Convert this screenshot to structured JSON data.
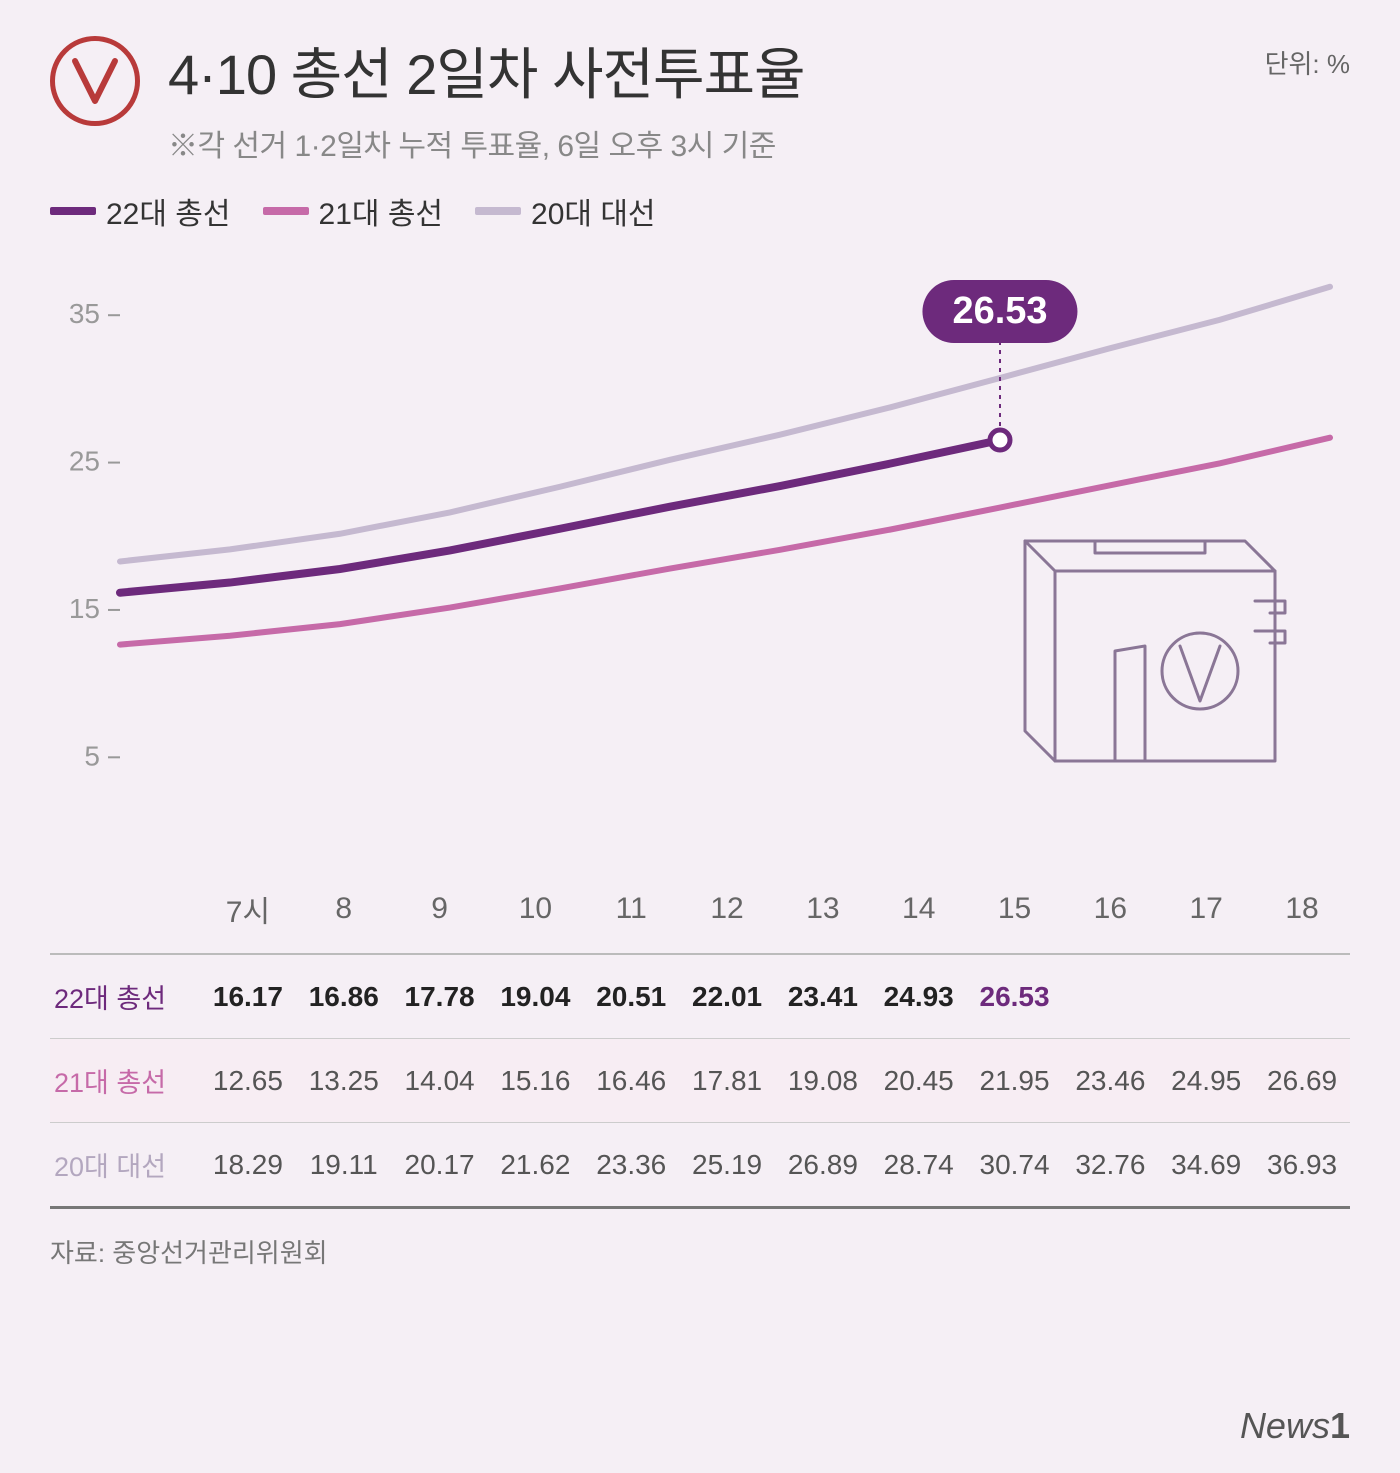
{
  "header": {
    "title": "4·10 총선 2일차 사전투표율",
    "subtitle": "※각 선거 1·2일차 누적 투표율, 6일 오후 3시 기준",
    "unit": "단위: %"
  },
  "legend": [
    {
      "label": "22대 총선",
      "color": "#6d2a7c"
    },
    {
      "label": "21대 총선",
      "color": "#c66aa8"
    },
    {
      "label": "20대 대선",
      "color": "#c5b9d0"
    }
  ],
  "chart": {
    "type": "line",
    "background_color": "#f5eff5",
    "x_labels": [
      "7시",
      "8",
      "9",
      "10",
      "11",
      "12",
      "13",
      "14",
      "15",
      "16",
      "17",
      "18"
    ],
    "y_ticks": [
      5,
      15,
      25,
      35
    ],
    "y_min": 0,
    "y_max": 38,
    "y_label_color": "#999",
    "y_label_fontsize": 28,
    "line_width_main": 8,
    "line_width_other": 6,
    "series": [
      {
        "name": "22대 총선",
        "color": "#6d2a7c",
        "width": 8,
        "values": [
          16.17,
          16.86,
          17.78,
          19.04,
          20.51,
          22.01,
          23.41,
          24.93,
          26.53
        ],
        "end_marker": true
      },
      {
        "name": "21대 총선",
        "color": "#c66aa8",
        "width": 6,
        "values": [
          12.65,
          13.25,
          14.04,
          15.16,
          16.46,
          17.81,
          19.08,
          20.45,
          21.95,
          23.46,
          24.95,
          26.69
        ]
      },
      {
        "name": "20대 대선",
        "color": "#c5b9d0",
        "width": 6,
        "values": [
          18.29,
          19.11,
          20.17,
          21.62,
          23.36,
          25.19,
          26.89,
          28.74,
          30.74,
          32.76,
          34.69,
          36.93
        ]
      }
    ],
    "callout": {
      "value": "26.53",
      "series_index": 0,
      "point_index": 8,
      "pill_bg": "#6d2a7c",
      "pill_fg": "#ffffff"
    },
    "ballot_box_stroke": "#8a7696"
  },
  "table": {
    "columns": [
      "",
      "7시",
      "8",
      "9",
      "10",
      "11",
      "12",
      "13",
      "14",
      "15",
      "16",
      "17",
      "18"
    ],
    "rows": [
      {
        "label": "22대 총선",
        "class": "row-22",
        "highlight_col": 9,
        "cells": [
          "16.17",
          "16.86",
          "17.78",
          "19.04",
          "20.51",
          "22.01",
          "23.41",
          "24.93",
          "26.53",
          "",
          "",
          ""
        ]
      },
      {
        "label": "21대 총선",
        "class": "row-21",
        "cells": [
          "12.65",
          "13.25",
          "14.04",
          "15.16",
          "16.46",
          "17.81",
          "19.08",
          "20.45",
          "21.95",
          "23.46",
          "24.95",
          "26.69"
        ]
      },
      {
        "label": "20대 대선",
        "class": "row-20",
        "cells": [
          "18.29",
          "19.11",
          "20.17",
          "21.62",
          "23.36",
          "25.19",
          "26.89",
          "28.74",
          "30.74",
          "32.76",
          "34.69",
          "36.93"
        ]
      }
    ]
  },
  "source": "자료: 중앙선거관리위원회",
  "footer_brand": "News1"
}
